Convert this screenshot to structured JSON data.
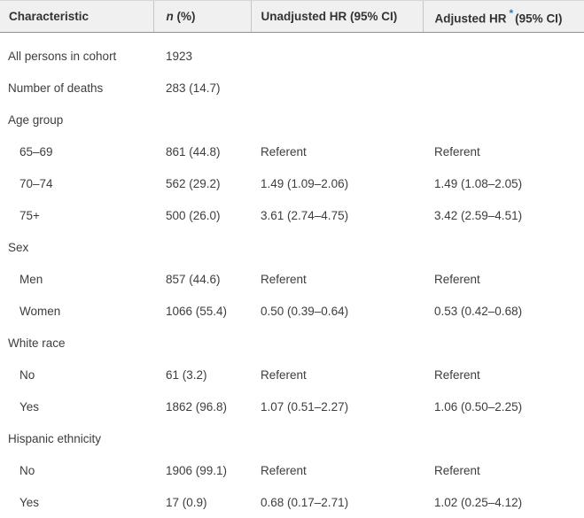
{
  "colors": {
    "header_background": "#f0f0f0",
    "header_bottom_border": "#8f8f8f",
    "column_separator": "#c6c6c6",
    "body_text": "#3d3d3d",
    "footnote_asterisk_blue": "#2e7bb8"
  },
  "table": {
    "header": {
      "characteristic": "Characteristic",
      "n_italic": "n",
      "n_rest": " (%)",
      "unadjusted": "Unadjusted HR (95% CI)",
      "adjusted_pre": "Adjusted HR",
      "footnote_marker": "*",
      "adjusted_post": "(95% CI)"
    },
    "rows": [
      {
        "label": "All persons in cohort",
        "indent": false,
        "n": "1923",
        "unadjusted": "",
        "adjusted": ""
      },
      {
        "label": "Number of deaths",
        "indent": false,
        "n": "283 (14.7)",
        "unadjusted": "",
        "adjusted": ""
      },
      {
        "label": "Age group",
        "indent": false,
        "n": "",
        "unadjusted": "",
        "adjusted": ""
      },
      {
        "label": "65–69",
        "indent": true,
        "n": "861 (44.8)",
        "unadjusted": "Referent",
        "adjusted": "Referent"
      },
      {
        "label": "70–74",
        "indent": true,
        "n": "562 (29.2)",
        "unadjusted": "1.49 (1.09–2.06)",
        "adjusted": "1.49 (1.08–2.05)"
      },
      {
        "label": "75+",
        "indent": true,
        "n": "500 (26.0)",
        "unadjusted": "3.61 (2.74–4.75)",
        "adjusted": "3.42 (2.59–4.51)"
      },
      {
        "label": "Sex",
        "indent": false,
        "n": "",
        "unadjusted": "",
        "adjusted": ""
      },
      {
        "label": "Men",
        "indent": true,
        "n": "857 (44.6)",
        "unadjusted": "Referent",
        "adjusted": "Referent"
      },
      {
        "label": "Women",
        "indent": true,
        "n": "1066 (55.4)",
        "unadjusted": "0.50 (0.39–0.64)",
        "adjusted": "0.53 (0.42–0.68)"
      },
      {
        "label": "White race",
        "indent": false,
        "n": "",
        "unadjusted": "",
        "adjusted": ""
      },
      {
        "label": "No",
        "indent": true,
        "n": "61 (3.2)",
        "unadjusted": "Referent",
        "adjusted": "Referent"
      },
      {
        "label": "Yes",
        "indent": true,
        "n": "1862 (96.8)",
        "unadjusted": "1.07 (0.51–2.27)",
        "adjusted": "1.06 (0.50–2.25)"
      },
      {
        "label": "Hispanic ethnicity",
        "indent": false,
        "n": "",
        "unadjusted": "",
        "adjusted": ""
      },
      {
        "label": "No",
        "indent": true,
        "n": "1906 (99.1)",
        "unadjusted": "Referent",
        "adjusted": "Referent"
      },
      {
        "label": "Yes",
        "indent": true,
        "n": "17 (0.9)",
        "unadjusted": "0.68 (0.17–2.71)",
        "adjusted": "1.02 (0.25–4.12)"
      }
    ]
  }
}
